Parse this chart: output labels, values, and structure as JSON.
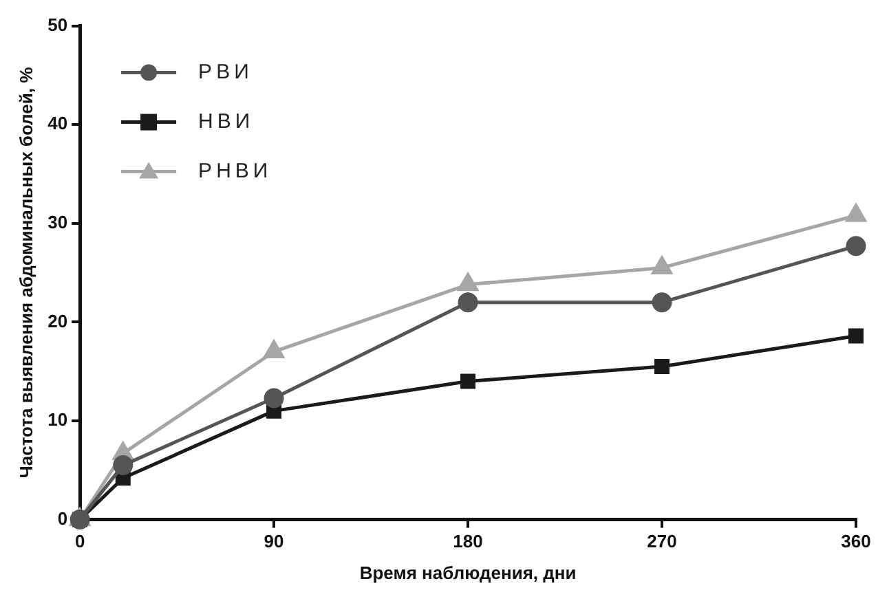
{
  "chart_data": {
    "type": "line",
    "xlabel": "Время наблюдения, дни",
    "ylabel": "Частота выявления абдоминальных болей, %",
    "x": [
      0,
      20,
      90,
      180,
      270,
      360
    ],
    "series": [
      {
        "name": "РВИ",
        "color": "#555555",
        "marker": "circle",
        "values": [
          0,
          5.5,
          12.3,
          22,
          22,
          27.7
        ]
      },
      {
        "name": "НВИ",
        "color": "#1a1a1a",
        "marker": "square",
        "values": [
          0,
          4.2,
          11,
          14,
          15.5,
          18.6
        ]
      },
      {
        "name": "РНВИ",
        "color": "#a6a6a6",
        "marker": "triangle",
        "values": [
          0,
          6.7,
          17,
          23.8,
          25.5,
          30.8
        ]
      }
    ],
    "xlim": [
      0,
      360
    ],
    "xticks": [
      0,
      90,
      180,
      270,
      360
    ],
    "ylim": [
      0,
      50
    ],
    "yticks": [
      0,
      10,
      20,
      30,
      40,
      50
    ],
    "grid": false,
    "legend": "top left",
    "line_style": "solid"
  }
}
